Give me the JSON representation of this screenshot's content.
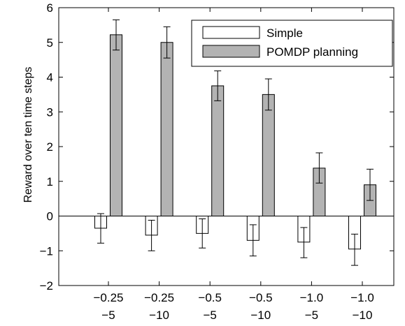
{
  "chart_data": {
    "type": "bar",
    "ylabel": "Reward over ten time steps",
    "xlabel": "",
    "ylim": [
      -2,
      6
    ],
    "yticks": [
      "−2",
      "−1",
      "0",
      "1",
      "2",
      "3",
      "4",
      "5",
      "6"
    ],
    "categories": [
      [
        "−0.25",
        "−5"
      ],
      [
        "−0.25",
        "−10"
      ],
      [
        "−0.5",
        "−5"
      ],
      [
        "−0.5",
        "−10"
      ],
      [
        "−1.0",
        "−5"
      ],
      [
        "−1.0",
        "−10"
      ]
    ],
    "series": [
      {
        "name": "Simple",
        "color": "#ffffff",
        "values": [
          -0.35,
          -0.55,
          -0.5,
          -0.7,
          -0.75,
          -0.95
        ],
        "error_low": [
          -0.78,
          -1.0,
          -0.92,
          -1.15,
          -1.2,
          -1.42
        ],
        "error_high": [
          0.07,
          -0.12,
          -0.08,
          -0.25,
          -0.33,
          -0.52
        ]
      },
      {
        "name": "POMDP planning",
        "color": "#b3b3b3",
        "values": [
          5.22,
          5.0,
          3.75,
          3.5,
          1.38,
          0.9
        ],
        "error_low": [
          4.78,
          4.55,
          3.32,
          3.05,
          0.95,
          0.45
        ],
        "error_high": [
          5.65,
          5.45,
          4.18,
          3.95,
          1.82,
          1.35
        ]
      }
    ],
    "legend_position": "top-right",
    "grid": false
  }
}
